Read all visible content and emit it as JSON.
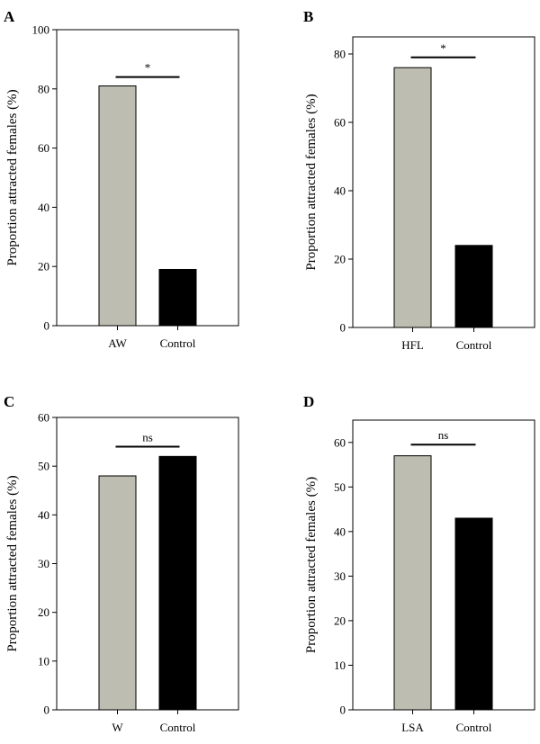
{
  "chart_data": [
    {
      "type": "bar",
      "panel": "A",
      "categories": [
        "AW",
        "Control"
      ],
      "values": [
        81,
        19
      ],
      "colors": [
        "#bdbdb1",
        "#000000"
      ],
      "ylabel": "Proportion attracted females (%)",
      "ylim": [
        0,
        100
      ],
      "yticks": [
        0,
        20,
        40,
        60,
        80,
        100
      ],
      "significance": "*",
      "significance_y": 84
    },
    {
      "type": "bar",
      "panel": "B",
      "categories": [
        "HFL",
        "Control"
      ],
      "values": [
        76,
        24
      ],
      "colors": [
        "#bdbdb1",
        "#000000"
      ],
      "ylabel": "Proportion attracted females (%)",
      "ylim": [
        0,
        85
      ],
      "yticks": [
        0,
        20,
        40,
        60,
        80
      ],
      "significance": "*",
      "significance_y": 79
    },
    {
      "type": "bar",
      "panel": "C",
      "categories": [
        "W",
        "Control"
      ],
      "values": [
        48,
        52
      ],
      "colors": [
        "#bdbdb1",
        "#000000"
      ],
      "ylabel": "Proportion attracted females (%)",
      "ylim": [
        0,
        60
      ],
      "yticks": [
        0,
        10,
        20,
        30,
        40,
        50,
        60
      ],
      "significance": "ns",
      "significance_y": 54
    },
    {
      "type": "bar",
      "panel": "D",
      "categories": [
        "LSA",
        "Control"
      ],
      "values": [
        57,
        43
      ],
      "colors": [
        "#bdbdb1",
        "#000000"
      ],
      "ylabel": "Proportion attracted females (%)",
      "ylim": [
        0,
        65
      ],
      "yticks": [
        0,
        10,
        20,
        30,
        40,
        50,
        60
      ],
      "significance": "ns",
      "significance_y": 59.5
    }
  ]
}
